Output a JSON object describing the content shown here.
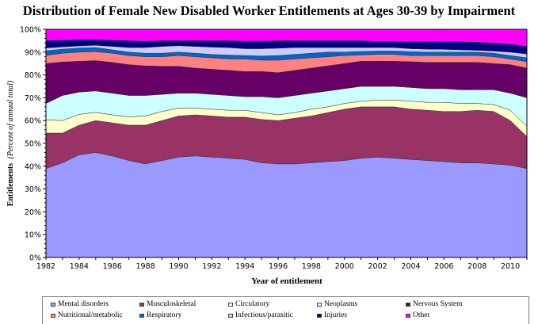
{
  "chart_data": {
    "type": "area",
    "stacked": true,
    "normalized": true,
    "title": "Distribution of Female New Disabled Worker Entitlements at Ages 30-39 by Impairment",
    "xlabel": "Year of entitlement",
    "ylabel_main": "Entitlements",
    "ylabel_sub": "(Percent of annual total)",
    "ylim": [
      0,
      100
    ],
    "y_ticks": [
      "0%",
      "10%",
      "20%",
      "30%",
      "40%",
      "50%",
      "60%",
      "70%",
      "80%",
      "90%",
      "100%"
    ],
    "x_ticks": [
      "1982",
      "1984",
      "1986",
      "1988",
      "1990",
      "1992",
      "1994",
      "1996",
      "1998",
      "2000",
      "2002",
      "2004",
      "2006",
      "2008",
      "2010"
    ],
    "x": [
      1982,
      1983,
      1984,
      1985,
      1986,
      1987,
      1988,
      1989,
      1990,
      1991,
      1992,
      1993,
      1994,
      1995,
      1996,
      1997,
      1998,
      1999,
      2000,
      2001,
      2002,
      2003,
      2004,
      2005,
      2006,
      2007,
      2008,
      2009,
      2010,
      2011
    ],
    "grid": false,
    "legend_position": "bottom",
    "series": [
      {
        "name": "Mental disorders",
        "color": "#9999ff",
        "values": [
          39.0,
          41.5,
          45.0,
          46.0,
          44.5,
          42.5,
          41.0,
          42.5,
          44.0,
          44.5,
          44.0,
          43.5,
          43.0,
          41.5,
          41.0,
          41.0,
          41.5,
          42.0,
          42.5,
          43.5,
          44.0,
          43.5,
          43.0,
          42.5,
          42.0,
          41.5,
          41.5,
          41.0,
          40.5,
          39.0
        ]
      },
      {
        "name": "Musculoskeletal",
        "color": "#993366",
        "values": [
          15.5,
          13.0,
          13.0,
          14.0,
          14.5,
          15.5,
          17.0,
          17.5,
          18.0,
          18.0,
          18.0,
          18.0,
          18.5,
          19.0,
          19.0,
          20.0,
          20.5,
          21.5,
          22.5,
          22.5,
          22.0,
          22.5,
          22.0,
          22.0,
          22.0,
          22.5,
          23.0,
          23.0,
          19.5,
          14.0
        ]
      },
      {
        "name": "Circulatory",
        "color": "#ffffcc",
        "values": [
          5.8,
          5.5,
          4.7,
          3.6,
          3.5,
          3.6,
          4.0,
          4.0,
          3.5,
          3.0,
          3.0,
          3.0,
          3.0,
          3.0,
          2.5,
          2.5,
          3.0,
          2.5,
          2.5,
          2.5,
          3.0,
          3.0,
          3.5,
          3.5,
          4.0,
          3.5,
          3.0,
          3.0,
          4.5,
          4.5
        ]
      },
      {
        "name": "Neoplasms",
        "color": "#ccffff",
        "values": [
          7.2,
          11.0,
          9.8,
          9.4,
          9.5,
          9.4,
          9.0,
          7.5,
          6.5,
          6.5,
          6.5,
          6.5,
          6.0,
          7.0,
          7.5,
          7.5,
          7.0,
          7.0,
          6.5,
          6.5,
          6.0,
          6.0,
          6.0,
          6.0,
          6.0,
          6.0,
          6.0,
          6.5,
          7.5,
          12.5
        ]
      },
      {
        "name": "Nervous System",
        "color": "#660066",
        "values": [
          17.5,
          14.7,
          13.5,
          13.3,
          13.5,
          13.5,
          13.0,
          12.3,
          11.8,
          11.0,
          11.0,
          11.0,
          11.0,
          11.0,
          11.0,
          11.0,
          11.0,
          11.0,
          11.0,
          11.0,
          11.0,
          11.0,
          11.3,
          11.5,
          11.5,
          12.0,
          12.0,
          11.5,
          12.5,
          13.0
        ]
      },
      {
        "name": "Nutritional/metabolic",
        "color": "#ff8080",
        "values": [
          3.6,
          3.8,
          4.0,
          3.9,
          4.0,
          4.0,
          4.0,
          4.2,
          4.7,
          5.0,
          5.0,
          5.0,
          5.5,
          5.0,
          5.5,
          5.0,
          4.5,
          4.0,
          3.5,
          2.8,
          3.0,
          3.0,
          2.7,
          3.0,
          3.0,
          3.0,
          3.0,
          3.0,
          2.5,
          2.8
        ]
      },
      {
        "name": "Respiratory",
        "color": "#0066cc",
        "values": [
          2.0,
          1.8,
          1.8,
          1.8,
          1.5,
          1.5,
          1.5,
          1.5,
          1.5,
          1.5,
          1.5,
          1.7,
          1.5,
          1.8,
          2.0,
          2.0,
          2.0,
          2.0,
          1.5,
          1.5,
          1.5,
          1.5,
          1.7,
          1.5,
          1.5,
          1.5,
          1.5,
          1.5,
          1.5,
          1.7
        ]
      },
      {
        "name": "Infectious/parasitic",
        "color": "#ccccff",
        "values": [
          1.2,
          1.0,
          0.9,
          1.0,
          1.5,
          2.0,
          2.5,
          3.0,
          2.8,
          3.0,
          3.2,
          3.3,
          3.0,
          3.2,
          3.2,
          3.0,
          2.5,
          2.0,
          2.0,
          1.7,
          1.5,
          1.5,
          1.3,
          1.3,
          1.2,
          1.0,
          0.8,
          1.0,
          1.5,
          1.7
        ]
      },
      {
        "name": "Injuries",
        "color": "#000080",
        "values": [
          3.2,
          2.9,
          2.8,
          2.5,
          2.7,
          3.0,
          2.8,
          2.5,
          2.2,
          2.5,
          2.8,
          3.0,
          3.3,
          3.3,
          3.3,
          3.0,
          3.0,
          3.0,
          3.0,
          3.0,
          2.7,
          2.7,
          3.0,
          3.2,
          3.3,
          3.5,
          3.5,
          3.5,
          3.5,
          3.2
        ]
      },
      {
        "name": "Other",
        "color": "#ff00ff",
        "values": [
          5.0,
          4.8,
          4.5,
          4.5,
          4.8,
          5.0,
          5.2,
          5.0,
          5.0,
          5.0,
          5.0,
          5.0,
          5.2,
          5.2,
          5.0,
          5.0,
          5.0,
          5.0,
          5.0,
          5.0,
          5.3,
          5.3,
          5.5,
          5.5,
          5.5,
          5.5,
          5.7,
          6.0,
          6.5,
          7.6
        ]
      }
    ]
  }
}
